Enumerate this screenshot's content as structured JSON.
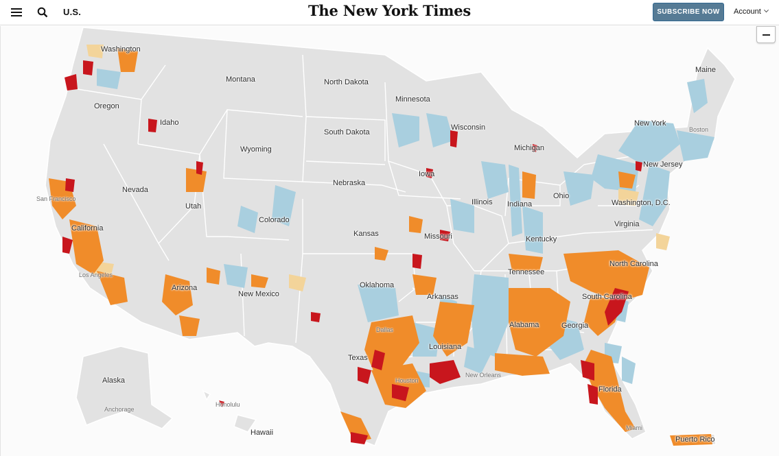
{
  "header": {
    "section": "U.S.",
    "masthead": "The New York Times",
    "subscribe": "SUBSCRIBE NOW",
    "account": "Account",
    "icons": [
      "menu-icon",
      "search-icon",
      "chevron-down-icon"
    ]
  },
  "map": {
    "zoom_out": "−",
    "colors": {
      "land": "#e2e2e2",
      "border": "#ffffff",
      "very_high": "#c8161d",
      "high": "#f08c2a",
      "medium": "#fab46a",
      "low_tan": "#f3d49a",
      "decreasing": "#a9cfdf"
    },
    "states": [
      {
        "key": "washington",
        "label": "Washington"
      },
      {
        "key": "oregon",
        "label": "Oregon"
      },
      {
        "key": "idaho",
        "label": "Idaho"
      },
      {
        "key": "montana",
        "label": "Montana"
      },
      {
        "key": "north_dakota",
        "label": "North Dakota"
      },
      {
        "key": "minnesota",
        "label": "Minnesota"
      },
      {
        "key": "south_dakota",
        "label": "South Dakota"
      },
      {
        "key": "wyoming",
        "label": "Wyoming"
      },
      {
        "key": "wisconsin",
        "label": "Wisconsin"
      },
      {
        "key": "michigan",
        "label": "Michigan"
      },
      {
        "key": "maine",
        "label": "Maine"
      },
      {
        "key": "new_york",
        "label": "New York"
      },
      {
        "key": "new_jersey",
        "label": "New Jersey"
      },
      {
        "key": "nevada",
        "label": "Nevada"
      },
      {
        "key": "utah",
        "label": "Utah"
      },
      {
        "key": "iowa",
        "label": "Iowa"
      },
      {
        "key": "nebraska",
        "label": "Nebraska"
      },
      {
        "key": "illinois",
        "label": "Illinois"
      },
      {
        "key": "indiana",
        "label": "Indiana"
      },
      {
        "key": "ohio",
        "label": "Ohio"
      },
      {
        "key": "washington_dc",
        "label": "Washington, D.C."
      },
      {
        "key": "california",
        "label": "California"
      },
      {
        "key": "colorado",
        "label": "Colorado"
      },
      {
        "key": "kansas",
        "label": "Kansas"
      },
      {
        "key": "missouri",
        "label": "Missouri"
      },
      {
        "key": "kentucky",
        "label": "Kentucky"
      },
      {
        "key": "virginia",
        "label": "Virginia"
      },
      {
        "key": "north_carolina",
        "label": "North Carolina"
      },
      {
        "key": "tennessee",
        "label": "Tennessee"
      },
      {
        "key": "oklahoma",
        "label": "Oklahoma"
      },
      {
        "key": "arkansas",
        "label": "Arkansas"
      },
      {
        "key": "south_carolina",
        "label": "South Carolina"
      },
      {
        "key": "arizona",
        "label": "Arizona"
      },
      {
        "key": "new_mexico",
        "label": "New Mexico"
      },
      {
        "key": "alabama",
        "label": "Alabama"
      },
      {
        "key": "georgia",
        "label": "Georgia"
      },
      {
        "key": "texas",
        "label": "Texas"
      },
      {
        "key": "louisiana",
        "label": "Louisiana"
      },
      {
        "key": "alaska",
        "label": "Alaska"
      },
      {
        "key": "florida",
        "label": "Florida"
      },
      {
        "key": "hawaii",
        "label": "Hawaii"
      },
      {
        "key": "puerto_rico",
        "label": "Puerto Rico"
      }
    ],
    "cities": [
      {
        "key": "boston",
        "label": "Boston"
      },
      {
        "key": "san_francisco",
        "label": "San Francisco"
      },
      {
        "key": "los_angeles",
        "label": "Los Angeles"
      },
      {
        "key": "dallas",
        "label": "Dallas"
      },
      {
        "key": "houston",
        "label": "Houston"
      },
      {
        "key": "new_orleans",
        "label": "New Orleans"
      },
      {
        "key": "anchorage",
        "label": "Anchorage"
      },
      {
        "key": "honolulu",
        "label": "Honolulu"
      },
      {
        "key": "miami",
        "label": "Miami"
      }
    ]
  }
}
